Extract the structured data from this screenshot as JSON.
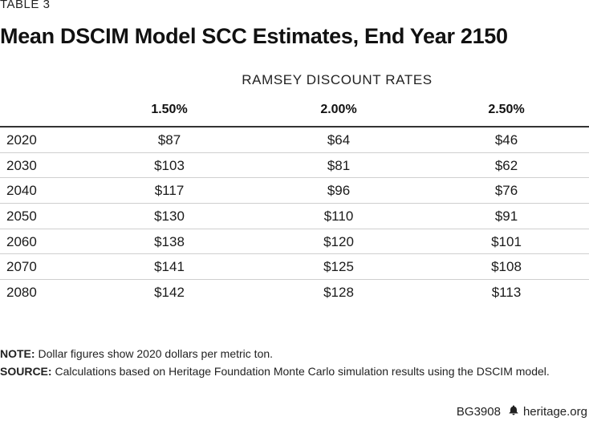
{
  "table_label": "TABLE 3",
  "title": "Mean DSCIM Model SCC Estimates, End Year 2150",
  "group_header": "RAMSEY DISCOUNT RATES",
  "columns": [
    "1.50%",
    "2.00%",
    "2.50%"
  ],
  "rows": [
    {
      "year": "2020",
      "values": [
        "$87",
        "$64",
        "$46"
      ]
    },
    {
      "year": "2030",
      "values": [
        "$103",
        "$81",
        "$62"
      ]
    },
    {
      "year": "2040",
      "values": [
        "$117",
        "$96",
        "$76"
      ]
    },
    {
      "year": "2050",
      "values": [
        "$130",
        "$110",
        "$91"
      ]
    },
    {
      "year": "2060",
      "values": [
        "$138",
        "$120",
        "$101"
      ]
    },
    {
      "year": "2070",
      "values": [
        "$141",
        "$125",
        "$108"
      ]
    },
    {
      "year": "2080",
      "values": [
        "$142",
        "$128",
        "$113"
      ]
    }
  ],
  "note": {
    "label": "NOTE:",
    "text": " Dollar figures show 2020 dollars per metric ton."
  },
  "source": {
    "label": "SOURCE:",
    "text": " Calculations based on Heritage Foundation Monte Carlo simulation results using the DSCIM model."
  },
  "footer": {
    "code": "BG3908",
    "icon": "bell-icon",
    "site": "heritage.org"
  }
}
